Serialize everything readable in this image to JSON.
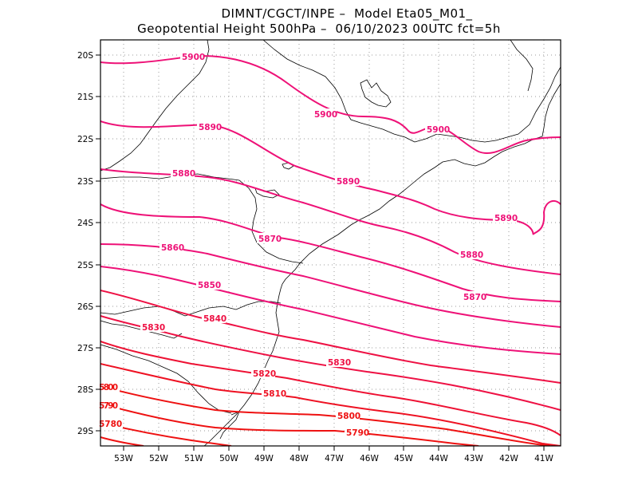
{
  "title_line1": "DIMNT/CGCT/INPE –  Model Eta05_M01_",
  "title_line2": "Geopotential Height 500hPa –  06/10/2023 00UTC fct=5h",
  "lat_ticks": [
    "20S",
    "21S",
    "22S",
    "23S",
    "24S",
    "25S",
    "26S",
    "27S",
    "28S",
    "29S"
  ],
  "lon_ticks": [
    "53W",
    "52W",
    "51W",
    "50W",
    "49W",
    "48W",
    "47W",
    "46W",
    "45W",
    "44W",
    "43W",
    "42W",
    "41W"
  ],
  "colors": {
    "pink": "#ee1177",
    "red": "#ee1111",
    "frame": "#000000",
    "coast": "#000000",
    "grid": "#9a9a9a"
  },
  "contour_labels": [
    "5900",
    "5900",
    "5900",
    "5890",
    "5890",
    "5890",
    "5880",
    "5880",
    "5870",
    "5870",
    "5860",
    "5850",
    "5840",
    "5830",
    "5830",
    "5820",
    "5810",
    "5800",
    "5800",
    "5790",
    "5790",
    "5780"
  ]
}
